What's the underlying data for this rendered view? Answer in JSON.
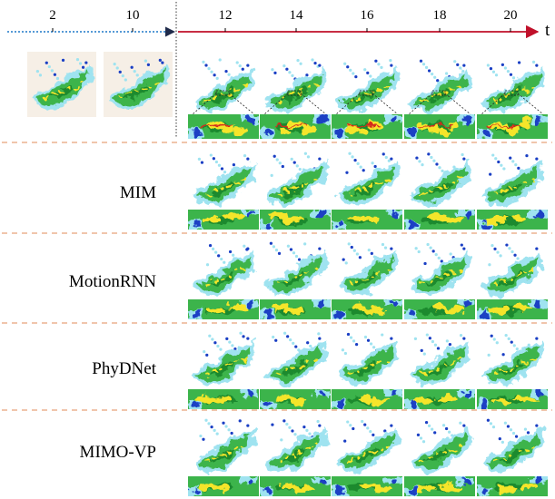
{
  "timeline": {
    "input_ticks": [
      "2",
      "10"
    ],
    "output_ticks": [
      "12",
      "14",
      "16",
      "18",
      "20"
    ],
    "axis_label": "t",
    "colors": {
      "input": "#1f78c8",
      "output": "#c0102a",
      "divider": "#e8a27a"
    }
  },
  "rows": [
    {
      "label": ""
    },
    {
      "label": "MIM"
    },
    {
      "label": "MotionRNN"
    },
    {
      "label": "PhyDNet"
    },
    {
      "label": "MIMO-VP"
    }
  ],
  "palette": {
    "green": "#3cb44b",
    "dark_green": "#1f8a2e",
    "yellow": "#f5e52b",
    "cyan": "#9fe3f0",
    "blue": "#1a3fc4",
    "red": "#d42a1e",
    "bg_light": "#f6efe6"
  }
}
